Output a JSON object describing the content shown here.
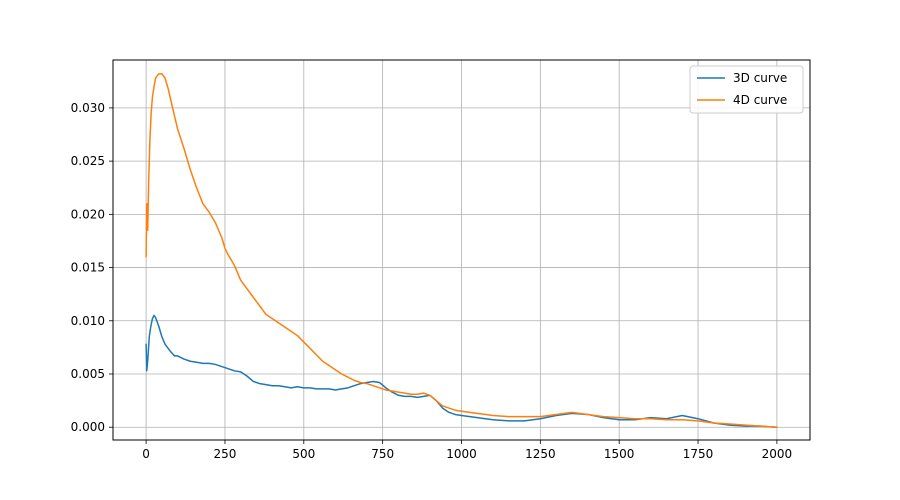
{
  "chart_data": {
    "type": "line",
    "title": "",
    "xlabel": "",
    "ylabel": "",
    "xlim": [
      -105,
      2105
    ],
    "ylim": [
      -0.0012,
      0.0345
    ],
    "xticks": [
      0,
      250,
      500,
      750,
      1000,
      1250,
      1500,
      1750,
      2000
    ],
    "xtick_labels": [
      "0",
      "250",
      "500",
      "750",
      "1000",
      "1250",
      "1500",
      "1750",
      "2000"
    ],
    "yticks": [
      0.0,
      0.005,
      0.01,
      0.015,
      0.02,
      0.025,
      0.03
    ],
    "ytick_labels": [
      "0.000",
      "0.005",
      "0.010",
      "0.015",
      "0.020",
      "0.025",
      "0.030"
    ],
    "grid": true,
    "legend_position": "top-right",
    "series": [
      {
        "name": "3D curve",
        "color": "#1f77b4",
        "x": [
          0,
          2,
          5,
          10,
          15,
          20,
          25,
          30,
          40,
          50,
          60,
          75,
          90,
          100,
          120,
          140,
          160,
          180,
          200,
          220,
          240,
          260,
          280,
          300,
          320,
          340,
          360,
          380,
          400,
          420,
          440,
          460,
          480,
          500,
          520,
          540,
          560,
          580,
          600,
          620,
          640,
          660,
          680,
          700,
          720,
          740,
          760,
          780,
          800,
          820,
          840,
          860,
          880,
          900,
          920,
          940,
          960,
          980,
          1000,
          1050,
          1100,
          1150,
          1200,
          1250,
          1300,
          1350,
          1400,
          1450,
          1500,
          1550,
          1600,
          1650,
          1700,
          1750,
          1800,
          1850,
          1900,
          1950,
          2000
        ],
        "y": [
          0.0078,
          0.0053,
          0.0062,
          0.0085,
          0.0095,
          0.0102,
          0.0105,
          0.0103,
          0.0095,
          0.0085,
          0.0078,
          0.0072,
          0.0067,
          0.0067,
          0.0064,
          0.0062,
          0.0061,
          0.006,
          0.006,
          0.0059,
          0.0057,
          0.0055,
          0.0053,
          0.0052,
          0.0048,
          0.0043,
          0.0041,
          0.004,
          0.0039,
          0.0039,
          0.0038,
          0.0037,
          0.0038,
          0.0037,
          0.0037,
          0.0036,
          0.0036,
          0.0036,
          0.0035,
          0.0036,
          0.0037,
          0.0039,
          0.0041,
          0.0042,
          0.0043,
          0.0042,
          0.0037,
          0.0033,
          0.003,
          0.0029,
          0.0029,
          0.0028,
          0.0029,
          0.003,
          0.0025,
          0.0018,
          0.0014,
          0.0012,
          0.0011,
          0.0009,
          0.0007,
          0.0006,
          0.0006,
          0.0008,
          0.0011,
          0.0013,
          0.0012,
          0.0009,
          0.0007,
          0.0007,
          0.0009,
          0.0008,
          0.0011,
          0.0008,
          0.0004,
          0.0002,
          0.0001,
          0.0001,
          0.0
        ]
      },
      {
        "name": "4D curve",
        "color": "#ff7f0e",
        "x": [
          0,
          2,
          5,
          8,
          12,
          16,
          20,
          25,
          30,
          40,
          50,
          60,
          70,
          80,
          100,
          120,
          140,
          160,
          180,
          200,
          220,
          240,
          250,
          260,
          280,
          300,
          320,
          340,
          360,
          380,
          400,
          420,
          440,
          460,
          480,
          500,
          520,
          540,
          560,
          580,
          600,
          620,
          640,
          660,
          680,
          700,
          720,
          740,
          760,
          780,
          800,
          820,
          840,
          860,
          880,
          900,
          920,
          940,
          960,
          980,
          1000,
          1050,
          1100,
          1150,
          1200,
          1250,
          1300,
          1350,
          1400,
          1450,
          1500,
          1550,
          1600,
          1650,
          1700,
          1750,
          1800,
          1850,
          1900,
          1950,
          2000
        ],
        "y": [
          0.016,
          0.021,
          0.0185,
          0.023,
          0.027,
          0.0295,
          0.031,
          0.032,
          0.0328,
          0.0332,
          0.0332,
          0.0328,
          0.0318,
          0.0305,
          0.028,
          0.0262,
          0.0242,
          0.0225,
          0.021,
          0.0202,
          0.0192,
          0.0178,
          0.0168,
          0.0162,
          0.0152,
          0.0138,
          0.013,
          0.0122,
          0.0114,
          0.0106,
          0.0102,
          0.0098,
          0.0094,
          0.009,
          0.0086,
          0.008,
          0.0074,
          0.0068,
          0.0062,
          0.0058,
          0.0054,
          0.005,
          0.0047,
          0.0044,
          0.0042,
          0.0041,
          0.0039,
          0.0037,
          0.0035,
          0.0034,
          0.0033,
          0.0032,
          0.0031,
          0.0031,
          0.0032,
          0.003,
          0.0025,
          0.002,
          0.0018,
          0.0016,
          0.0015,
          0.0013,
          0.0011,
          0.001,
          0.001,
          0.001,
          0.0012,
          0.0014,
          0.0012,
          0.001,
          0.0009,
          0.0008,
          0.0008,
          0.0007,
          0.0007,
          0.0006,
          0.0004,
          0.0003,
          0.0002,
          0.0001,
          0.0
        ]
      }
    ]
  }
}
